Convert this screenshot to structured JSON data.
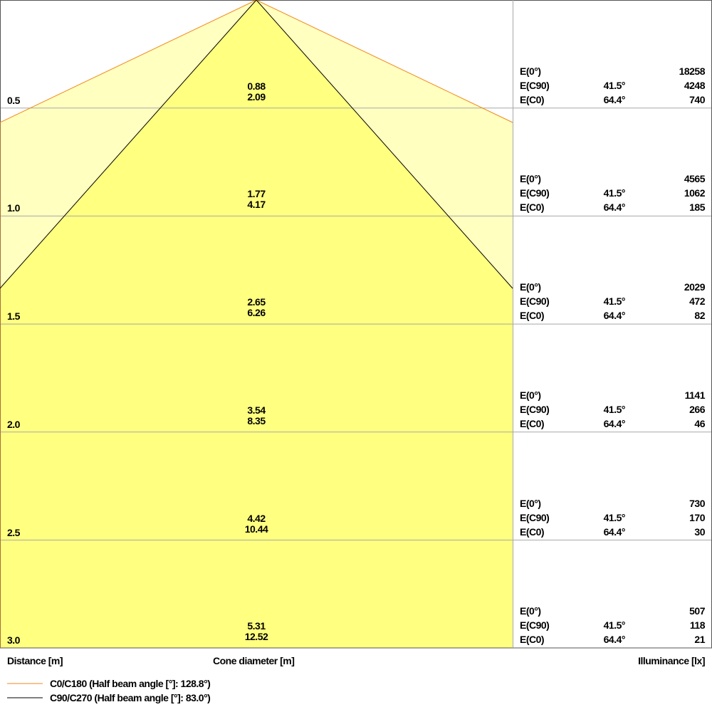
{
  "colors": {
    "c0_line": "#f08a1c",
    "c90_line": "#000000",
    "outer_fill": "#ffffc0",
    "inner_fill": "#ffff80",
    "grid": "#a8a8a8"
  },
  "half_beam_angles": {
    "c0": 128.8,
    "c90": 83.0
  },
  "rows": [
    {
      "distance": "0.5",
      "d1": "0.88",
      "d2": "2.09",
      "e0": "18258",
      "a90": "41.5°",
      "e90": "4248",
      "a0": "64.4°",
      "ec0": "740"
    },
    {
      "distance": "1.0",
      "d1": "1.77",
      "d2": "4.17",
      "e0": "4565",
      "a90": "41.5°",
      "e90": "1062",
      "a0": "64.4°",
      "ec0": "185"
    },
    {
      "distance": "1.5",
      "d1": "2.65",
      "d2": "6.26",
      "e0": "2029",
      "a90": "41.5°",
      "e90": "472",
      "a0": "64.4°",
      "ec0": "82"
    },
    {
      "distance": "2.0",
      "d1": "3.54",
      "d2": "8.35",
      "e0": "1141",
      "a90": "41.5°",
      "e90": "266",
      "a0": "64.4°",
      "ec0": "46"
    },
    {
      "distance": "2.5",
      "d1": "4.42",
      "d2": "10.44",
      "e0": "730",
      "a90": "41.5°",
      "e90": "170",
      "a0": "64.4°",
      "ec0": "30"
    },
    {
      "distance": "3.0",
      "d1": "5.31",
      "d2": "12.52",
      "e0": "507",
      "a90": "41.5°",
      "e90": "118",
      "a0": "64.4°",
      "ec0": "21"
    }
  ],
  "labels": {
    "e0": "E(0°)",
    "e90": "E(C90)",
    "ec0": "E(C0)"
  },
  "axis": {
    "distance": "Distance [m]",
    "cone": "Cone diameter [m]",
    "illuminance": "Illuminance [lx]"
  },
  "legend": {
    "c0": "C0/C180 (Half beam angle [°]: 128.8°)",
    "c90": "C90/C270 (Half beam angle [°]: 83.0°)"
  }
}
